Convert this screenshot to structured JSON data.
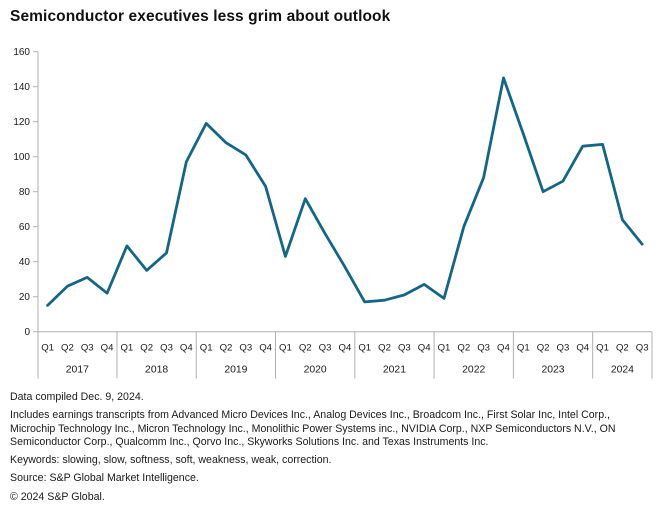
{
  "title": "Semiconductor executives less grim about outlook",
  "chart_data": {
    "type": "line",
    "title": "Semiconductor executives less grim about outlook",
    "xlabel": "",
    "ylabel": "",
    "ylim": [
      0,
      160
    ],
    "yticks": [
      0,
      20,
      40,
      60,
      80,
      100,
      120,
      140,
      160
    ],
    "grid": "off",
    "markers": "none",
    "line_color": "#156586",
    "axis_color": "#b0b0b0",
    "years": [
      {
        "label": "2017",
        "quarters": [
          "Q1",
          "Q2",
          "Q3",
          "Q4"
        ]
      },
      {
        "label": "2018",
        "quarters": [
          "Q1",
          "Q2",
          "Q3",
          "Q4"
        ]
      },
      {
        "label": "2019",
        "quarters": [
          "Q1",
          "Q2",
          "Q3",
          "Q4"
        ]
      },
      {
        "label": "2020",
        "quarters": [
          "Q1",
          "Q2",
          "Q3",
          "Q4"
        ]
      },
      {
        "label": "2021",
        "quarters": [
          "Q1",
          "Q2",
          "Q3",
          "Q4"
        ]
      },
      {
        "label": "2022",
        "quarters": [
          "Q1",
          "Q2",
          "Q3",
          "Q4"
        ]
      },
      {
        "label": "2023",
        "quarters": [
          "Q1",
          "Q2",
          "Q3",
          "Q4"
        ]
      },
      {
        "label": "2024",
        "quarters": [
          "Q1",
          "Q2",
          "Q3"
        ]
      }
    ],
    "categories": [
      "2017 Q1",
      "2017 Q2",
      "2017 Q3",
      "2017 Q4",
      "2018 Q1",
      "2018 Q2",
      "2018 Q3",
      "2018 Q4",
      "2019 Q1",
      "2019 Q2",
      "2019 Q3",
      "2019 Q4",
      "2020 Q1",
      "2020 Q2",
      "2020 Q3",
      "2020 Q4",
      "2021 Q1",
      "2021 Q2",
      "2021 Q3",
      "2021 Q4",
      "2022 Q1",
      "2022 Q2",
      "2022 Q3",
      "2022 Q4",
      "2023 Q1",
      "2023 Q2",
      "2023 Q3",
      "2023 Q4",
      "2024 Q1",
      "2024 Q2",
      "2024 Q3"
    ],
    "values": [
      15,
      26,
      31,
      22,
      49,
      35,
      45,
      97,
      119,
      108,
      101,
      83,
      43,
      76,
      56,
      37,
      17,
      18,
      21,
      27,
      19,
      60,
      88,
      145,
      113,
      80,
      86,
      106,
      107,
      64,
      50
    ]
  },
  "footer": {
    "compiled": "Data compiled Dec. 9, 2024.",
    "includes": "Includes earnings transcripts from Advanced Micro Devices Inc., Analog Devices Inc., Broadcom Inc., First Solar Inc, Intel Corp., Microchip Technology Inc., Micron Technology Inc., Monolithic Power Systems inc., NVIDIA Corp., NXP Semiconductors N.V., ON Semiconductor Corp., Qualcomm Inc., Qorvo Inc., Skyworks Solutions Inc. and Texas Instruments Inc.",
    "keywords": "Keywords: slowing, slow, softness, soft, weakness, weak, correction.",
    "source": "Source: S&P Global Market Intelligence.",
    "copyright": "© 2024 S&P Global."
  }
}
